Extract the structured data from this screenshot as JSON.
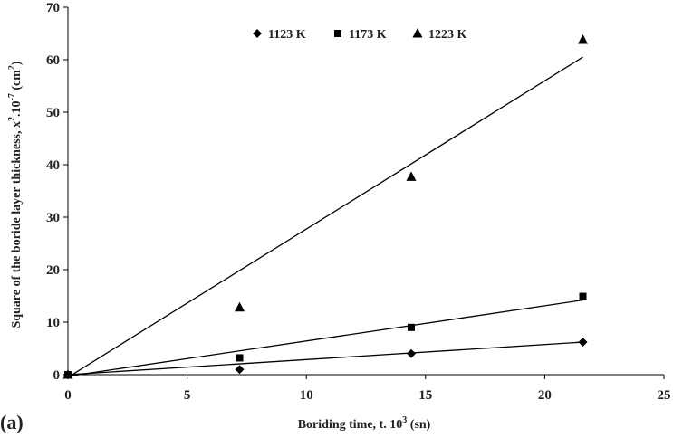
{
  "chart_data": {
    "type": "scatter",
    "panel_label": "(a)",
    "xlabel": {
      "text": "Boriding time, t. 10",
      "sup": "3",
      "unit": " (sn)"
    },
    "ylabel": {
      "text": "Square of the boride layer thickness, x",
      "sup1": "2",
      "mid": ".10",
      "sup2": "-7",
      "unit": " (cm",
      "sup3": "2",
      "end": ")"
    },
    "xlim": [
      0,
      25
    ],
    "ylim": [
      0,
      70
    ],
    "xticks": [
      0,
      5,
      10,
      15,
      20,
      25
    ],
    "yticks": [
      0,
      10,
      20,
      30,
      40,
      50,
      60,
      70
    ],
    "legend_position": "top-center",
    "series": [
      {
        "name": "1123 K",
        "marker": "diamond",
        "points": [
          [
            0,
            0
          ],
          [
            7.2,
            1.0
          ],
          [
            14.4,
            4.0
          ],
          [
            21.6,
            6.2
          ]
        ],
        "fit": [
          [
            0,
            0
          ],
          [
            21.6,
            6.2
          ]
        ]
      },
      {
        "name": "1173 K",
        "marker": "square",
        "points": [
          [
            0,
            0
          ],
          [
            7.2,
            3.2
          ],
          [
            14.4,
            9.0
          ],
          [
            21.6,
            14.9
          ]
        ],
        "fit": [
          [
            0,
            -0.3
          ],
          [
            21.6,
            14.2
          ]
        ]
      },
      {
        "name": "1223 K",
        "marker": "triangle",
        "points": [
          [
            0,
            0
          ],
          [
            7.2,
            12.8
          ],
          [
            14.4,
            37.7
          ],
          [
            21.6,
            63.8
          ]
        ],
        "fit": [
          [
            0,
            -0.5
          ],
          [
            21.6,
            60.5
          ]
        ]
      }
    ]
  }
}
